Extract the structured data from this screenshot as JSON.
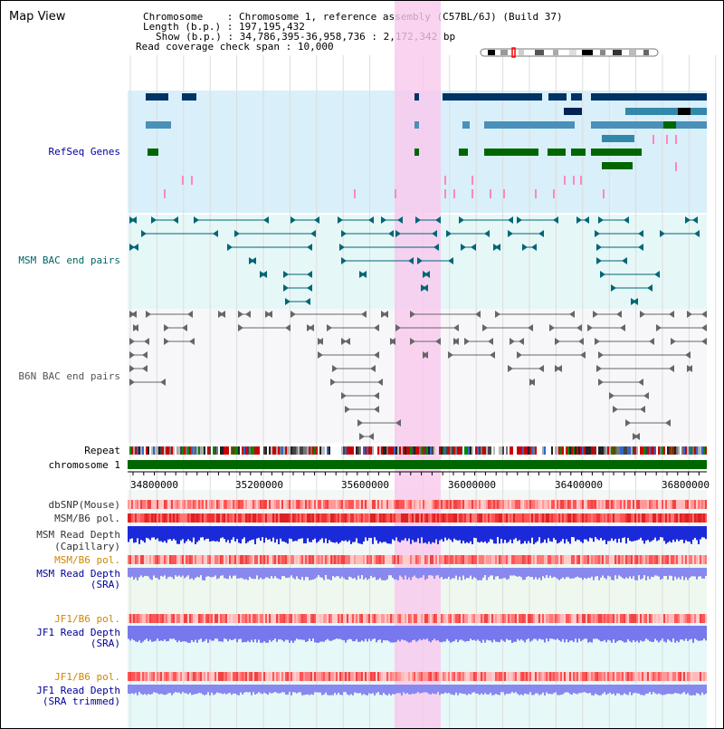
{
  "title": "Map View",
  "header": {
    "chromosome_label": "Chromosome",
    "chromosome_value": "Chromosome 1, reference assembly (C57BL/6J) (Build 37)",
    "length_label": "Length (b.p.)",
    "length_value": "197,195,432",
    "show_label": "Show (b.p.)",
    "show_value": "34,786,395-36,958,736 : 2,172,342 bp",
    "coverage_label": "Read coverage check span",
    "coverage_value": "10,000"
  },
  "tracks": {
    "refseq": {
      "label": "RefSeq Genes",
      "color": "#000099"
    },
    "msm_bac": {
      "label": "MSM BAC end pairs",
      "color": "#006666"
    },
    "b6n_bac": {
      "label": "B6N BAC end pairs",
      "color": "#555555"
    },
    "repeat": {
      "label": "Repeat",
      "color": "#000000"
    },
    "chromosome": {
      "label": "chromosome 1",
      "color": "#000000"
    },
    "dbsnp": {
      "label": "dbSNP(Mouse)",
      "color": "#333333"
    },
    "msm_pol1": {
      "label": "MSM/B6 pol.",
      "color": "#333333"
    },
    "msm_depth_cap": {
      "label": "MSM Read Depth",
      "label2": "(Capillary)",
      "color": "#333333"
    },
    "msm_pol2": {
      "label": "MSM/B6 pol.",
      "color": "#cc8800"
    },
    "msm_depth_sra": {
      "label": "MSM Read Depth",
      "label2": "(SRA)",
      "color": "#000099"
    },
    "jf1_pol1": {
      "label": "JF1/B6 pol.",
      "color": "#cc8800"
    },
    "jf1_depth_sra": {
      "label": "JF1 Read Depth",
      "label2": "(SRA)",
      "color": "#000099"
    },
    "jf1_pol2": {
      "label": "JF1/B6 pol.",
      "color": "#cc8800"
    },
    "jf1_depth_trim": {
      "label": "JF1 Read Depth",
      "label2": "(SRA trimmed)",
      "color": "#000099"
    }
  },
  "axis": {
    "ticks": [
      "34800000",
      "35200000",
      "35600000",
      "36000000",
      "36400000",
      "36800000"
    ]
  }
}
